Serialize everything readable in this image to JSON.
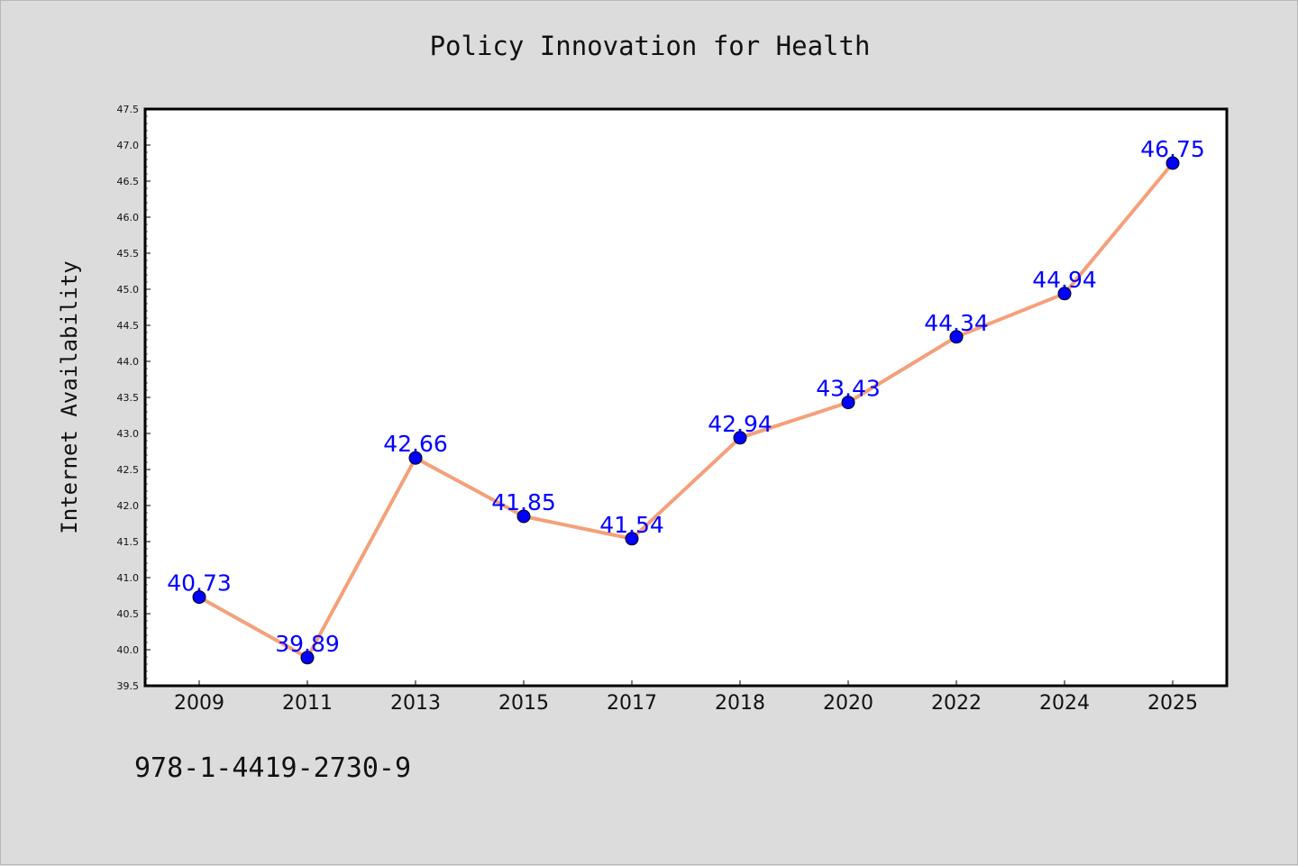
{
  "chart_data": {
    "type": "line",
    "title": "Policy Innovation for Health",
    "xlabel": "",
    "ylabel": "Internet Availability",
    "categories": [
      "2009",
      "2011",
      "2013",
      "2015",
      "2017",
      "2018",
      "2020",
      "2022",
      "2024",
      "2025"
    ],
    "series": [
      {
        "values": [
          40.73,
          39.89,
          42.66,
          41.85,
          41.54,
          42.94,
          43.43,
          44.34,
          44.94,
          46.75
        ]
      }
    ],
    "data_labels": [
      "40.73",
      "39.89",
      "42.66",
      "41.85",
      "41.54",
      "42.94",
      "43.43",
      "44.34",
      "44.94",
      "46.75"
    ],
    "ylim": [
      39.5,
      47.5
    ],
    "yticks": [
      "39.5",
      "40.0",
      "40.5",
      "41.0",
      "41.5",
      "42.0",
      "42.5",
      "43.0",
      "43.5",
      "44.0",
      "44.5",
      "45.0",
      "45.5",
      "46.0",
      "46.5",
      "47.0",
      "47.5"
    ],
    "grid": false,
    "legend": "none",
    "colors": {
      "line": "#f4a07a",
      "marker": "#0000ff",
      "label": "#0000ff",
      "background": "#dcdcdc",
      "plot_bg": "#ffffff"
    }
  },
  "footnote": "978-1-4419-2730-9"
}
